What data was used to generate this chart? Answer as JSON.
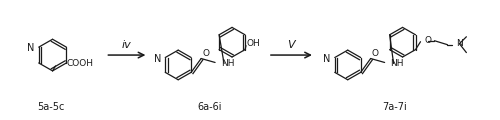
{
  "bg_color": "#ffffff",
  "text_color": "#1a1a1a",
  "fig_width": 5.0,
  "fig_height": 1.2,
  "dpi": 100,
  "label_left": "5a-5c",
  "label_mid": "6a-6i",
  "label_right": "7a-7i",
  "reagent_iv": "iv",
  "reagent_v": "V",
  "lw": 0.9
}
